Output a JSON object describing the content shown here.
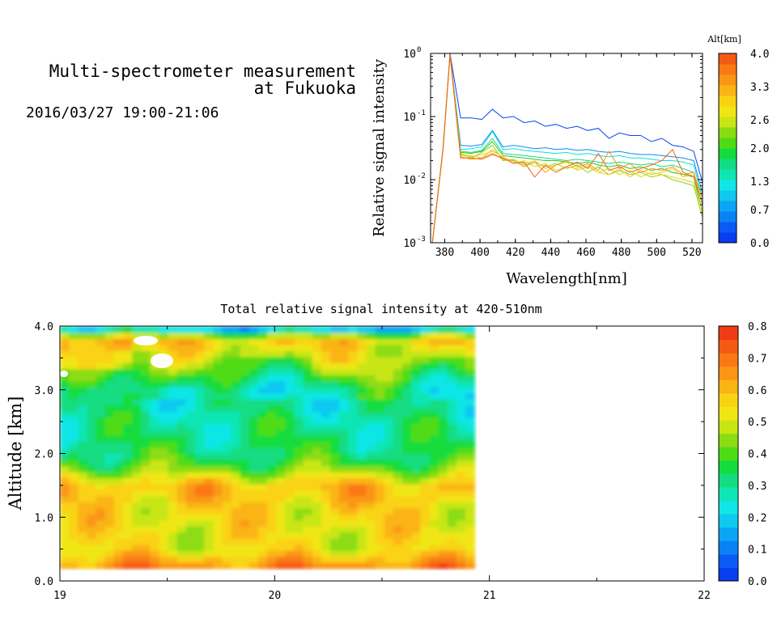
{
  "header": {
    "title_line1": "Multi-spectrometer measurement",
    "title_line2": "at Fukuoka",
    "datetime": "2016/03/27 19:00-21:06"
  },
  "chart_data": [
    {
      "type": "line",
      "xlabel": "Wavelength[nm]",
      "ylabel": "Relative signal intensity",
      "xlim": [
        372,
        526
      ],
      "ylim": [
        0.001,
        1
      ],
      "yscale": "log",
      "x_ticks": [
        "380",
        "400",
        "420",
        "440",
        "460",
        "480",
        "500",
        "520"
      ],
      "y_ticks": [
        {
          "base": "10",
          "exp": "-3",
          "value": 0.001
        },
        {
          "base": "10",
          "exp": "-2",
          "value": 0.01
        },
        {
          "base": "10",
          "exp": "-1",
          "value": 0.1
        },
        {
          "base": "10",
          "exp": "0",
          "value": 1
        }
      ],
      "colorbar": {
        "title": "Alt[km]",
        "range": [
          0,
          4.0
        ],
        "ticks": [
          "0.0",
          "0.7",
          "1.3",
          "2.0",
          "2.6",
          "3.3",
          "4.0"
        ],
        "colors": [
          "#0a3cf0",
          "#0a5af5",
          "#0a82f5",
          "#0aa6f5",
          "#10c8f0",
          "#10e6e6",
          "#10e6b4",
          "#14dc82",
          "#14dc3c",
          "#50dc14",
          "#8cdc14",
          "#c8e614",
          "#f0e614",
          "#fad214",
          "#fab414",
          "#fa9614",
          "#fa7814",
          "#f55a14"
        ]
      },
      "x": [
        373,
        379,
        383,
        389,
        395,
        401,
        407,
        413,
        419,
        425,
        431,
        437,
        443,
        449,
        455,
        461,
        467,
        473,
        479,
        485,
        491,
        497,
        503,
        509,
        515,
        521,
        526
      ],
      "series": [
        {
          "alt": 0.2,
          "color": "#0a46f0",
          "values": [
            0.001,
            0.03,
            1.0,
            0.095,
            0.095,
            0.09,
            0.13,
            0.095,
            0.1,
            0.08,
            0.085,
            0.07,
            0.075,
            0.065,
            0.07,
            0.06,
            0.065,
            0.045,
            0.055,
            0.05,
            0.05,
            0.04,
            0.045,
            0.035,
            0.033,
            0.028,
            0.009
          ]
        },
        {
          "alt": 0.7,
          "color": "#0a8cf5",
          "values": [
            0.001,
            0.03,
            0.95,
            0.035,
            0.034,
            0.036,
            0.06,
            0.033,
            0.035,
            0.033,
            0.031,
            0.032,
            0.03,
            0.031,
            0.029,
            0.03,
            0.028,
            0.027,
            0.028,
            0.026,
            0.025,
            0.025,
            0.024,
            0.023,
            0.022,
            0.02,
            0.006
          ]
        },
        {
          "alt": 1.3,
          "color": "#10dcdc",
          "values": [
            0.001,
            0.03,
            0.95,
            0.03,
            0.031,
            0.033,
            0.058,
            0.03,
            0.031,
            0.029,
            0.028,
            0.027,
            0.026,
            0.027,
            0.025,
            0.026,
            0.024,
            0.023,
            0.024,
            0.022,
            0.022,
            0.021,
            0.02,
            0.02,
            0.019,
            0.017,
            0.005
          ]
        },
        {
          "alt": 1.7,
          "color": "#14dc78",
          "values": [
            0.001,
            0.03,
            0.95,
            0.028,
            0.027,
            0.029,
            0.045,
            0.026,
            0.025,
            0.024,
            0.023,
            0.022,
            0.021,
            0.02,
            0.021,
            0.02,
            0.019,
            0.018,
            0.019,
            0.018,
            0.017,
            0.018,
            0.016,
            0.017,
            0.015,
            0.013,
            0.004
          ]
        },
        {
          "alt": 2.0,
          "color": "#28c828",
          "values": [
            0.001,
            0.03,
            0.95,
            0.027,
            0.026,
            0.028,
            0.04,
            0.024,
            0.023,
            0.022,
            0.021,
            0.02,
            0.02,
            0.019,
            0.018,
            0.019,
            0.017,
            0.016,
            0.017,
            0.015,
            0.016,
            0.014,
            0.015,
            0.013,
            0.012,
            0.011,
            0.003
          ]
        },
        {
          "alt": 2.4,
          "color": "#8cd214",
          "values": [
            0.001,
            0.03,
            0.95,
            0.026,
            0.022,
            0.027,
            0.035,
            0.02,
            0.021,
            0.017,
            0.019,
            0.016,
            0.018,
            0.015,
            0.017,
            0.013,
            0.016,
            0.012,
            0.014,
            0.012,
            0.013,
            0.011,
            0.012,
            0.01,
            0.009,
            0.008,
            0.0025
          ]
        },
        {
          "alt": 2.8,
          "color": "#d2dc14",
          "values": [
            0.001,
            0.03,
            0.95,
            0.025,
            0.024,
            0.022,
            0.03,
            0.022,
            0.018,
            0.02,
            0.016,
            0.018,
            0.014,
            0.016,
            0.015,
            0.017,
            0.013,
            0.015,
            0.012,
            0.014,
            0.011,
            0.013,
            0.012,
            0.011,
            0.01,
            0.009,
            0.003
          ]
        },
        {
          "alt": 3.1,
          "color": "#fac814",
          "values": [
            0.001,
            0.03,
            0.95,
            0.024,
            0.023,
            0.025,
            0.028,
            0.023,
            0.019,
            0.018,
            0.02,
            0.015,
            0.017,
            0.019,
            0.014,
            0.016,
            0.013,
            0.012,
            0.015,
            0.011,
            0.014,
            0.012,
            0.013,
            0.015,
            0.011,
            0.012,
            0.004
          ]
        },
        {
          "alt": 3.5,
          "color": "#fa9614",
          "values": [
            0.001,
            0.03,
            0.95,
            0.023,
            0.021,
            0.022,
            0.026,
            0.021,
            0.02,
            0.016,
            0.019,
            0.013,
            0.017,
            0.02,
            0.016,
            0.018,
            0.014,
            0.028,
            0.015,
            0.018,
            0.013,
            0.015,
            0.014,
            0.016,
            0.012,
            0.013,
            0.005
          ]
        },
        {
          "alt": 3.9,
          "color": "#f06414",
          "values": [
            0.001,
            0.03,
            0.95,
            0.022,
            0.022,
            0.021,
            0.025,
            0.022,
            0.018,
            0.019,
            0.011,
            0.017,
            0.013,
            0.016,
            0.019,
            0.015,
            0.026,
            0.014,
            0.016,
            0.013,
            0.015,
            0.017,
            0.02,
            0.03,
            0.013,
            0.011,
            0.004
          ]
        }
      ]
    },
    {
      "type": "heatmap",
      "title": "Total relative signal intensity at 420-510nm",
      "ylabel": "Altitude [km]",
      "xlabel": "",
      "xlim": [
        19,
        22
      ],
      "ylim": [
        0,
        4.0
      ],
      "data_time_range": [
        19.0,
        20.93
      ],
      "x_ticks": [
        "19",
        "20",
        "21",
        "22"
      ],
      "y_ticks": [
        "0.0",
        "1.0",
        "2.0",
        "3.0",
        "4.0"
      ],
      "colorbar": {
        "range": [
          0,
          0.8
        ],
        "ticks": [
          "0.0",
          "0.1",
          "0.2",
          "0.3",
          "0.4",
          "0.5",
          "0.6",
          "0.7",
          "0.8"
        ],
        "colors": [
          "#0a3cf0",
          "#0a5af5",
          "#0a82f5",
          "#0aa6f5",
          "#10c8f0",
          "#10e6e6",
          "#10e6b4",
          "#14dc82",
          "#14dc3c",
          "#50dc14",
          "#8cdc14",
          "#c8e614",
          "#f0e614",
          "#fad214",
          "#fab414",
          "#fa9614",
          "#fa7814",
          "#f55a14",
          "#f03c14"
        ]
      },
      "profile": [
        {
          "alt": 0.2,
          "value": 0.68
        },
        {
          "alt": 0.3,
          "value": 0.64
        },
        {
          "alt": 0.5,
          "value": 0.52
        },
        {
          "alt": 1.0,
          "value": 0.54
        },
        {
          "alt": 1.5,
          "value": 0.6
        },
        {
          "alt": 1.8,
          "value": 0.4
        },
        {
          "alt": 2.0,
          "value": 0.34
        },
        {
          "alt": 2.5,
          "value": 0.3
        },
        {
          "alt": 3.0,
          "value": 0.28
        },
        {
          "alt": 3.5,
          "value": 0.48
        },
        {
          "alt": 3.8,
          "value": 0.58
        },
        {
          "alt": 4.0,
          "value": 0.1
        }
      ]
    }
  ]
}
